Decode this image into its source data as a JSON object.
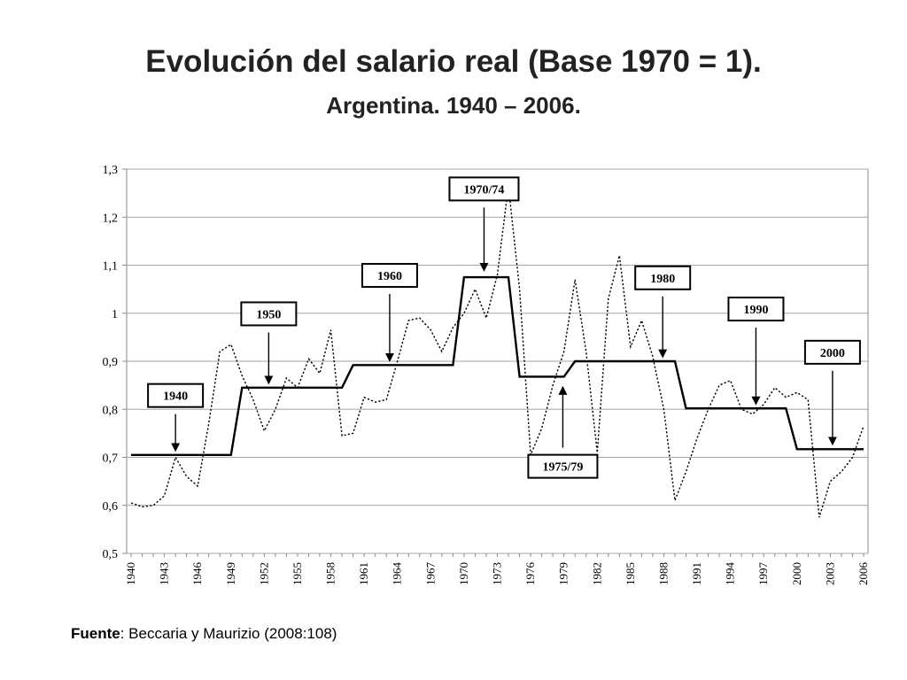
{
  "slide": {
    "title": "Evolución del salario real (Base 1970 = 1).",
    "subtitle": "Argentina. 1940 – 2006.",
    "source_label": "Fuente",
    "source_text": ": Beccaria y Maurizio (2008:108)"
  },
  "chart_data": {
    "type": "line",
    "title": "Evolución del salario real (Base 1970 = 1).",
    "subtitle": "Argentina. 1940 – 2006.",
    "xlabel": "",
    "ylabel": "",
    "xlim": [
      1940,
      2006
    ],
    "ylim": [
      0.5,
      1.3
    ],
    "yticks": [
      0.5,
      0.6,
      0.7,
      0.8,
      0.9,
      1.0,
      1.1,
      1.2,
      1.3
    ],
    "ytick_labels": [
      "0,5",
      "0,6",
      "0,7",
      "0,8",
      "0,9",
      "1",
      "1,1",
      "1,2",
      "1,3"
    ],
    "xticks": [
      1940,
      1943,
      1946,
      1949,
      1952,
      1955,
      1958,
      1961,
      1964,
      1967,
      1970,
      1973,
      1976,
      1979,
      1982,
      1985,
      1988,
      1991,
      1994,
      1997,
      2000,
      2003,
      2006
    ],
    "xtick_labels": [
      "1940",
      "1943",
      "1946",
      "1949",
      "1952",
      "1955",
      "1958",
      "1961",
      "1964",
      "1967",
      "1970",
      "1973",
      "1976",
      "1979",
      "1982",
      "1985",
      "1988",
      "1991",
      "1994",
      "1997",
      "2000",
      "2003",
      "2006"
    ],
    "grid": "horizontal",
    "x": [
      1940,
      1941,
      1942,
      1943,
      1944,
      1945,
      1946,
      1947,
      1948,
      1949,
      1950,
      1951,
      1952,
      1953,
      1954,
      1955,
      1956,
      1957,
      1958,
      1959,
      1960,
      1961,
      1962,
      1963,
      1964,
      1965,
      1966,
      1967,
      1968,
      1969,
      1970,
      1971,
      1972,
      1973,
      1974,
      1975,
      1976,
      1977,
      1978,
      1979,
      1980,
      1981,
      1982,
      1983,
      1984,
      1985,
      1986,
      1987,
      1988,
      1989,
      1990,
      1991,
      1992,
      1993,
      1994,
      1995,
      1996,
      1997,
      1998,
      1999,
      2000,
      2001,
      2002,
      2003,
      2004,
      2005,
      2006
    ],
    "series": [
      {
        "style": "dotted",
        "values": [
          0.605,
          0.597,
          0.6,
          0.62,
          0.7,
          0.66,
          0.64,
          0.77,
          0.92,
          0.935,
          0.87,
          0.82,
          0.755,
          0.8,
          0.865,
          0.845,
          0.905,
          0.875,
          0.965,
          0.745,
          0.75,
          0.825,
          0.815,
          0.82,
          0.9,
          0.985,
          0.99,
          0.965,
          0.92,
          0.97,
          1.0,
          1.05,
          0.99,
          1.08,
          1.265,
          1.05,
          0.705,
          0.76,
          0.85,
          0.92,
          1.07,
          0.92,
          0.71,
          1.03,
          1.12,
          0.93,
          0.985,
          0.91,
          0.8,
          0.61,
          0.67,
          0.74,
          0.8,
          0.85,
          0.86,
          0.8,
          0.79,
          0.81,
          0.845,
          0.825,
          0.835,
          0.82,
          0.575,
          0.65,
          0.67,
          0.7,
          0.765
        ]
      },
      {
        "style": "solid",
        "values": [
          0.705,
          0.705,
          0.705,
          0.705,
          0.705,
          0.705,
          0.705,
          0.705,
          0.705,
          0.705,
          0.845,
          0.845,
          0.845,
          0.845,
          0.845,
          0.845,
          0.845,
          0.845,
          0.845,
          0.845,
          0.892,
          0.892,
          0.892,
          0.892,
          0.892,
          0.892,
          0.892,
          0.892,
          0.892,
          0.892,
          1.075,
          1.075,
          1.075,
          1.075,
          1.075,
          0.868,
          0.868,
          0.868,
          0.868,
          0.868,
          0.9,
          0.9,
          0.9,
          0.9,
          0.9,
          0.9,
          0.9,
          0.9,
          0.9,
          0.9,
          0.802,
          0.802,
          0.802,
          0.802,
          0.802,
          0.802,
          0.802,
          0.802,
          0.802,
          0.802,
          0.717,
          0.717,
          0.717,
          0.717,
          0.717,
          0.717,
          0.717
        ]
      }
    ],
    "annotations": [
      {
        "label": "1940",
        "arrow_x": 1944,
        "arrow_direction": "down",
        "arrow_tip_y": 0.715,
        "arrow_tail_y": 0.79
      },
      {
        "label": "1950",
        "arrow_x": 1952.4,
        "arrow_direction": "down",
        "arrow_tip_y": 0.855,
        "arrow_tail_y": 0.96
      },
      {
        "label": "1960",
        "arrow_x": 1963.3,
        "arrow_direction": "down",
        "arrow_tip_y": 0.902,
        "arrow_tail_y": 1.04
      },
      {
        "label": "1970/74",
        "arrow_x": 1971.8,
        "arrow_direction": "down",
        "arrow_tip_y": 1.09,
        "arrow_tail_y": 1.22
      },
      {
        "label": "1975/79",
        "arrow_x": 1978.9,
        "arrow_direction": "up",
        "arrow_tip_y": 0.845,
        "arrow_tail_y": 0.72
      },
      {
        "label": "1980",
        "arrow_x": 1987.9,
        "arrow_direction": "down",
        "arrow_tip_y": 0.91,
        "arrow_tail_y": 1.035
      },
      {
        "label": "1990",
        "arrow_x": 1996.3,
        "arrow_direction": "down",
        "arrow_tip_y": 0.812,
        "arrow_tail_y": 0.97
      },
      {
        "label": "2000",
        "arrow_x": 2003.2,
        "arrow_direction": "down",
        "arrow_tip_y": 0.728,
        "arrow_tail_y": 0.88
      }
    ]
  }
}
